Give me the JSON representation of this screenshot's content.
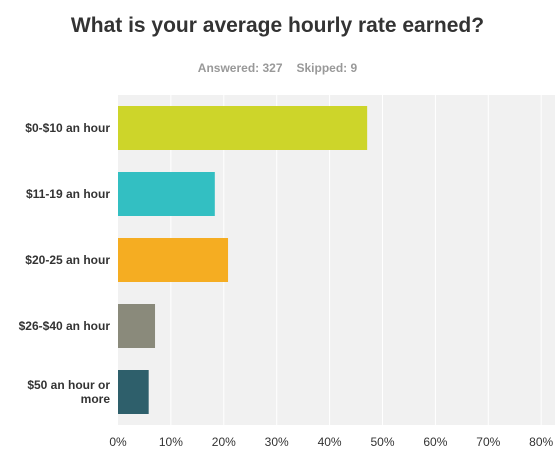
{
  "header": {
    "title": "What is your average hourly rate earned?",
    "answered_label": "Answered: 327",
    "skipped_label": "Skipped: 9"
  },
  "chart_data": {
    "type": "bar",
    "orientation": "horizontal",
    "title": "What is your average hourly rate earned?",
    "categories": [
      [
        "$0-$10 an hour"
      ],
      [
        "$11-19 an hour"
      ],
      [
        "$20-25 an hour"
      ],
      [
        "$26-$40 an hour"
      ],
      [
        "$50 an hour or",
        "more"
      ]
    ],
    "values": [
      47.1,
      18.3,
      20.8,
      7.0,
      5.8
    ],
    "colors": [
      "#cdd52a",
      "#33bfc2",
      "#f5ad22",
      "#8a8a7b",
      "#2e5f6b"
    ],
    "xlim": [
      0,
      80
    ],
    "xticks": [
      "0%",
      "10%",
      "20%",
      "30%",
      "40%",
      "50%",
      "60%",
      "70%",
      "80%"
    ],
    "grid": true,
    "background": "#f1f1f1"
  }
}
